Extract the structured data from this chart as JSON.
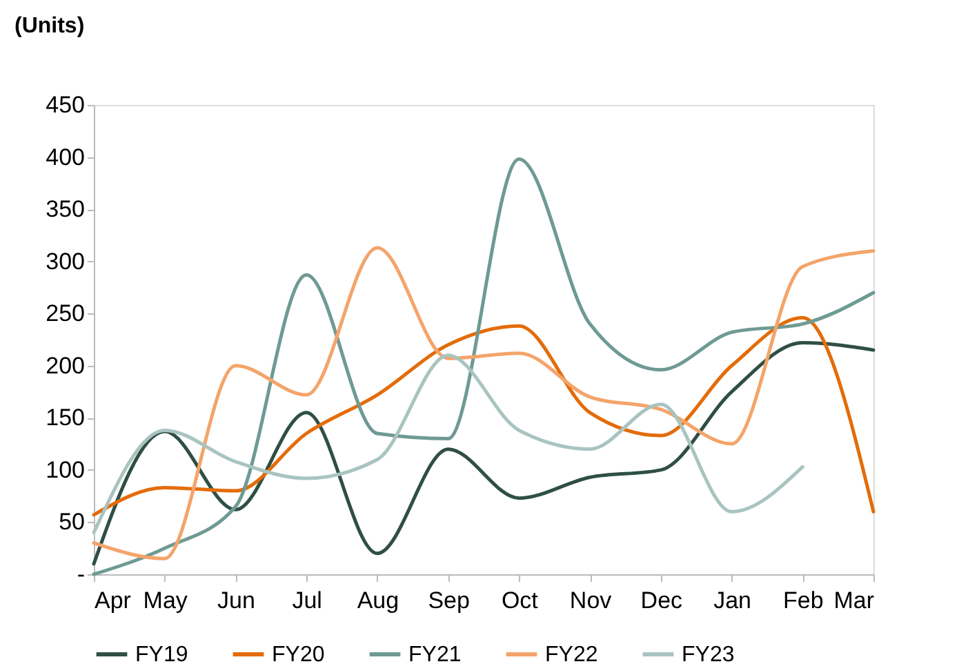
{
  "chart_data": {
    "type": "line",
    "ylabel": "(Units)",
    "categories": [
      "Apr",
      "May",
      "Jun",
      "Jul",
      "Aug",
      "Sep",
      "Oct",
      "Nov",
      "Dec",
      "Jan",
      "Feb",
      "Mar"
    ],
    "series": [
      {
        "name": "FY19",
        "color": "#2f4f45",
        "values": [
          10,
          137,
          62,
          155,
          20,
          120,
          73,
          93,
          100,
          175,
          222,
          215
        ]
      },
      {
        "name": "FY20",
        "color": "#e36c0a",
        "values": [
          57,
          83,
          80,
          135,
          172,
          220,
          238,
          155,
          133,
          200,
          246,
          60
        ]
      },
      {
        "name": "FY21",
        "color": "#6f9a94",
        "values": [
          0,
          25,
          65,
          287,
          135,
          130,
          398,
          240,
          196,
          232,
          240,
          270
        ]
      },
      {
        "name": "FY22",
        "color": "#f4a46a",
        "values": [
          30,
          15,
          200,
          172,
          313,
          207,
          212,
          170,
          158,
          125,
          295,
          310
        ]
      },
      {
        "name": "FY23",
        "color": "#a9c4c0",
        "values": [
          40,
          138,
          108,
          92,
          110,
          210,
          138,
          120,
          163,
          60,
          103,
          null
        ]
      }
    ],
    "ylim": [
      0,
      450
    ],
    "yticks": [
      {
        "value": 0,
        "label": "-"
      },
      50,
      100,
      150,
      200,
      250,
      300,
      350,
      400,
      450
    ],
    "grid": false,
    "legend": "bottom",
    "marker": "none",
    "line_style": "solid"
  }
}
